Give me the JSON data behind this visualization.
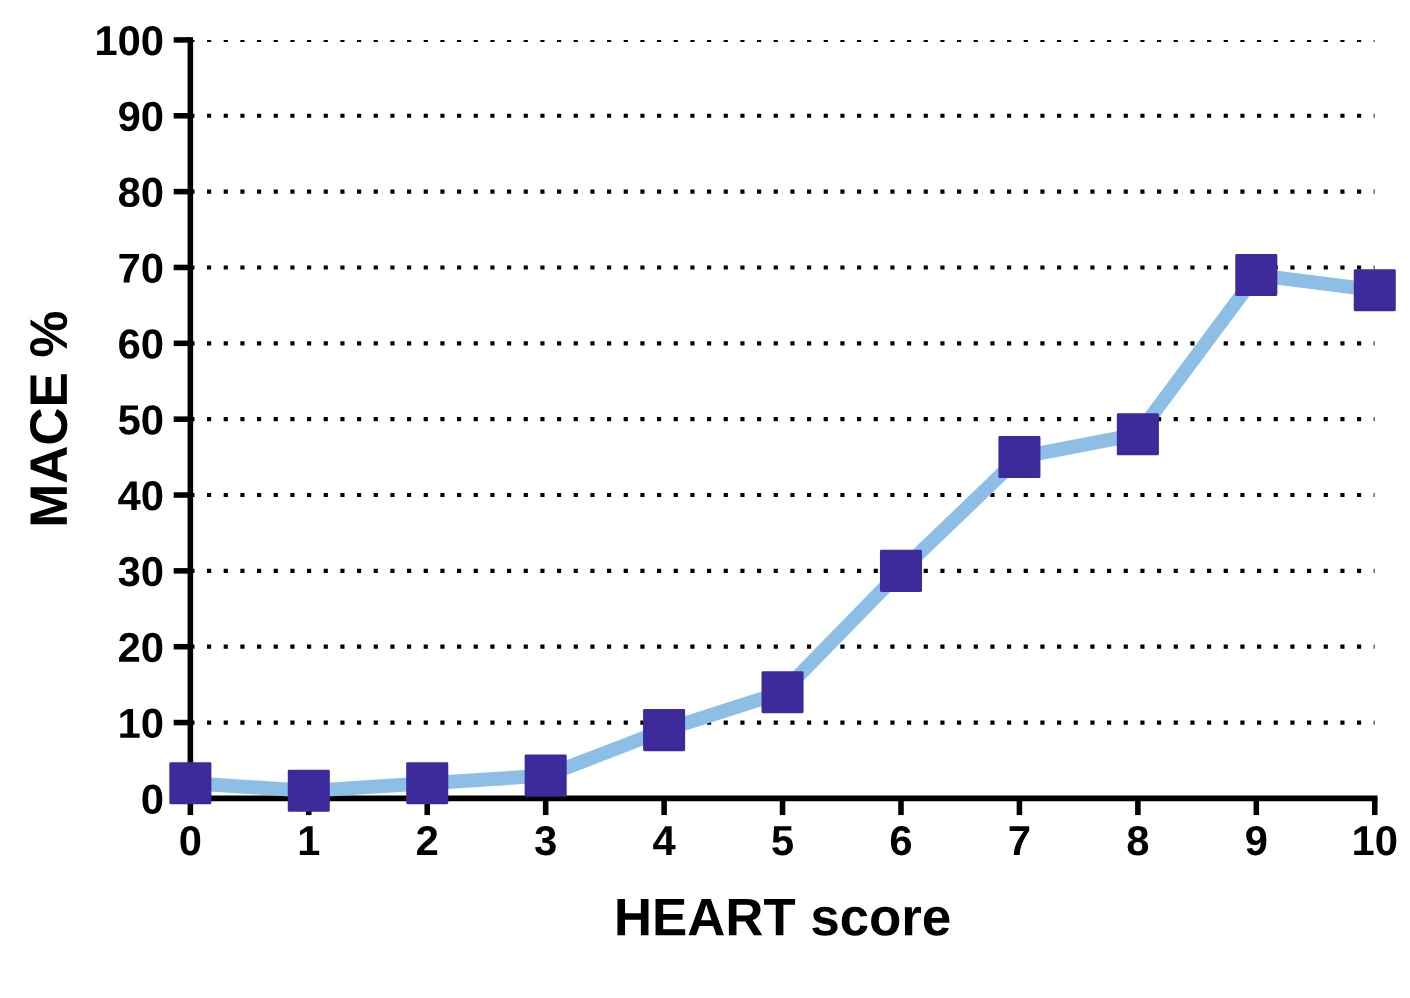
{
  "chart_data": {
    "type": "line",
    "xlabel": "HEART score",
    "ylabel": "MACE %",
    "x": [
      0,
      1,
      2,
      3,
      4,
      5,
      6,
      7,
      8,
      9,
      10
    ],
    "series": [
      {
        "color": "#8dbfe6",
        "colors": [
          "#3d2b9b",
          "#3d2b9b",
          "#3d2b9b",
          "#3d2b9b",
          "#3d2b9b",
          "#3d2b9b",
          "#3d2b9b",
          "#3d2b9b",
          "#3d2b9b",
          "#3d2b9b",
          "#3d2b9b"
        ],
        "values": [
          2,
          1,
          2,
          3,
          9,
          14,
          30,
          45,
          48,
          69,
          67
        ]
      }
    ],
    "xlim": [
      0,
      10
    ],
    "xticks": [
      0,
      1,
      2,
      3,
      4,
      5,
      6,
      7,
      8,
      9,
      10
    ],
    "ylim": [
      0,
      100
    ],
    "yticks": [
      0,
      10,
      20,
      30,
      40,
      50,
      60,
      70,
      80,
      90,
      100
    ],
    "grid": "y",
    "marker": "square",
    "line_style": "solid",
    "legend": false
  }
}
